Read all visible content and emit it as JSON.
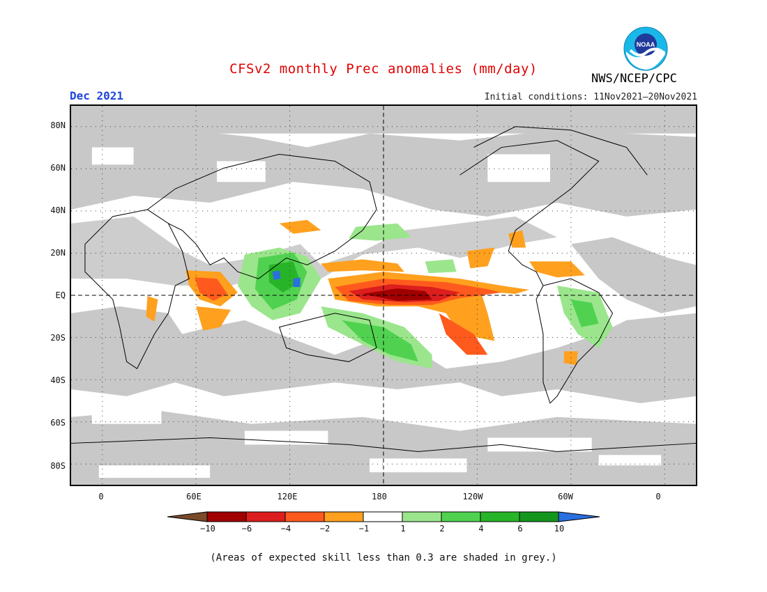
{
  "header": {
    "title": "CFSv2 monthly Prec anomalies (mm/day)",
    "month": "Dec 2021",
    "initial_conditions": "Initial conditions: 11Nov2021—20Nov2021",
    "agency": "NWS/NCEP/CPC",
    "logo_text": "NOAA"
  },
  "map": {
    "lat_labels": [
      "80N",
      "60N",
      "40N",
      "20N",
      "EQ",
      "20S",
      "40S",
      "60S",
      "80S"
    ],
    "lon_labels": [
      "0",
      "60E",
      "120E",
      "180",
      "120W",
      "60W",
      "0"
    ],
    "skill_shading_color": "#c8c8c8"
  },
  "colorbar": {
    "labels": [
      "−10",
      "−6",
      "−4",
      "−2",
      "−1",
      "1",
      "2",
      "4",
      "6",
      "10"
    ],
    "colors": [
      "#7a4a2a",
      "#a00000",
      "#dc1e1e",
      "#ff5a1e",
      "#ffa01e",
      "#ffffff",
      "#9be68c",
      "#50d250",
      "#28b428",
      "#14961e",
      "#2b6fe0"
    ]
  },
  "footnote": "(Areas of expected skill less than 0.3 are shaded in grey.)"
}
